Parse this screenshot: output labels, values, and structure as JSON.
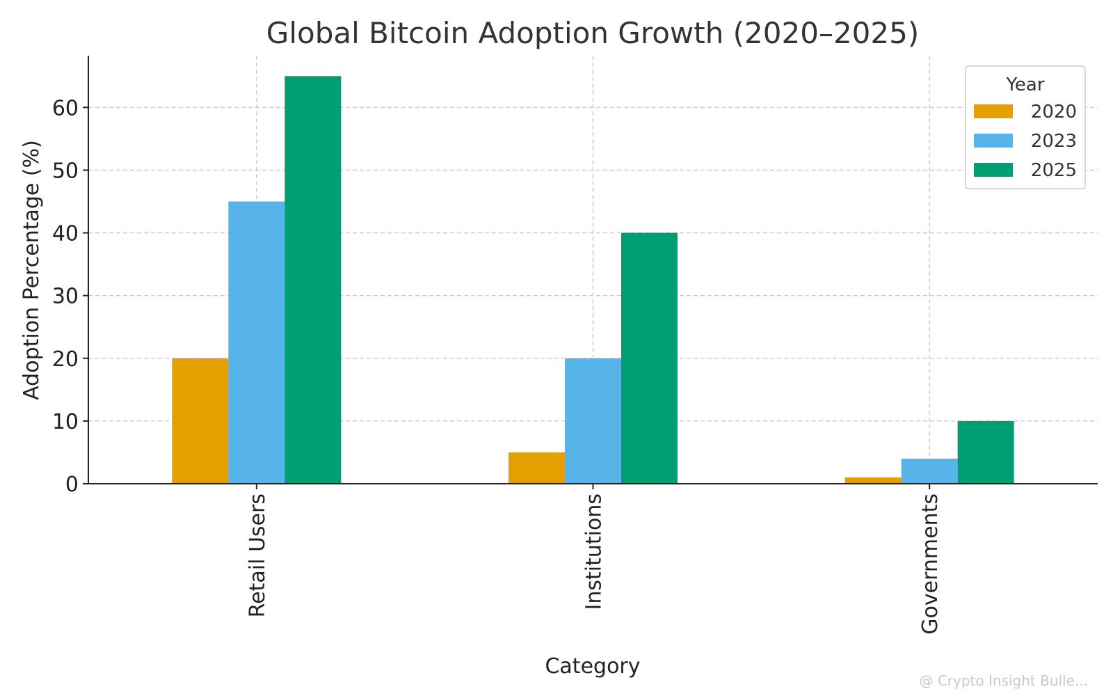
{
  "chart_data": {
    "type": "bar",
    "title": "Global Bitcoin Adoption Growth (2020–2025)",
    "xlabel": "Category",
    "ylabel": "Adoption Percentage (%)",
    "categories": [
      "Retail Users",
      "Institutions",
      "Governments"
    ],
    "series": [
      {
        "name": "2020",
        "color": "#E69F00",
        "values": [
          20,
          5,
          1
        ]
      },
      {
        "name": "2023",
        "color": "#56B4E9",
        "values": [
          45,
          20,
          4
        ]
      },
      {
        "name": "2025",
        "color": "#009E73",
        "values": [
          65,
          40,
          10
        ]
      }
    ],
    "ylim": [
      0,
      68.25
    ],
    "yticks": [
      0,
      10,
      20,
      30,
      40,
      50,
      60
    ],
    "grid": true,
    "legend": {
      "title": "Year",
      "placement": "top-right"
    }
  },
  "watermark": "@ Crypto Insight Bulle..."
}
